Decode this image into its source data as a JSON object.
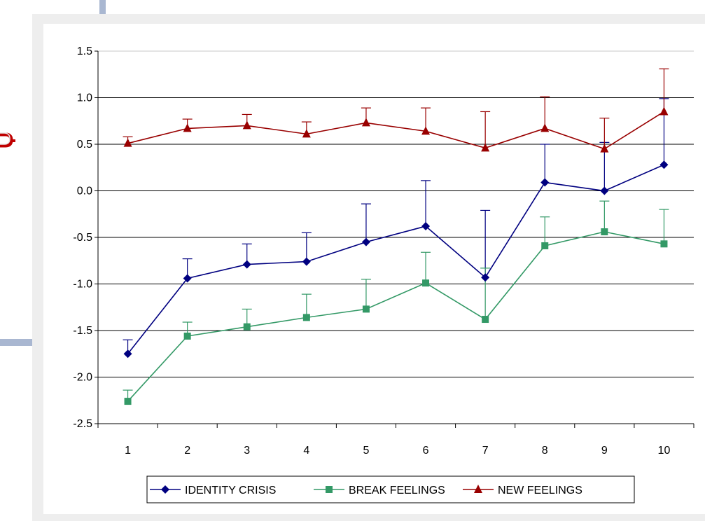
{
  "chart_data": {
    "type": "line",
    "title": "",
    "xlabel": "",
    "ylabel": "",
    "categories": [
      "1",
      "2",
      "3",
      "4",
      "5",
      "6",
      "7",
      "8",
      "9",
      "10"
    ],
    "ylim": [
      -2.5,
      1.5
    ],
    "yticks": [
      "1.5",
      "1.0",
      "0.5",
      "0.0",
      "-0.5",
      "-1.0",
      "-1.5",
      "-2.0",
      "-2.5"
    ],
    "grid": true,
    "legend_position": "bottom",
    "series": [
      {
        "name": "IDENTITY CRISIS",
        "color": "#000080",
        "marker": "diamond",
        "values": [
          -1.75,
          -0.94,
          -0.79,
          -0.76,
          -0.55,
          -0.38,
          -0.93,
          0.09,
          0.0,
          0.28
        ],
        "error_upper": [
          0.15,
          0.21,
          0.22,
          0.31,
          0.41,
          0.49,
          0.72,
          0.41,
          0.52,
          0.71
        ]
      },
      {
        "name": "BREAK FEELINGS",
        "color": "#339966",
        "marker": "square",
        "values": [
          -2.26,
          -1.56,
          -1.46,
          -1.36,
          -1.27,
          -0.99,
          -1.38,
          -0.59,
          -0.44,
          -0.57
        ],
        "error_upper": [
          0.12,
          0.15,
          0.19,
          0.25,
          0.32,
          0.33,
          0.55,
          0.31,
          0.33,
          0.37
        ]
      },
      {
        "name": "NEW FEELINGS",
        "color": "#990000",
        "marker": "triangle",
        "values": [
          0.51,
          0.67,
          0.7,
          0.61,
          0.73,
          0.64,
          0.46,
          0.67,
          0.45,
          0.85
        ],
        "error_upper": [
          0.07,
          0.1,
          0.12,
          0.13,
          0.16,
          0.25,
          0.39,
          0.34,
          0.33,
          0.46
        ]
      }
    ]
  }
}
